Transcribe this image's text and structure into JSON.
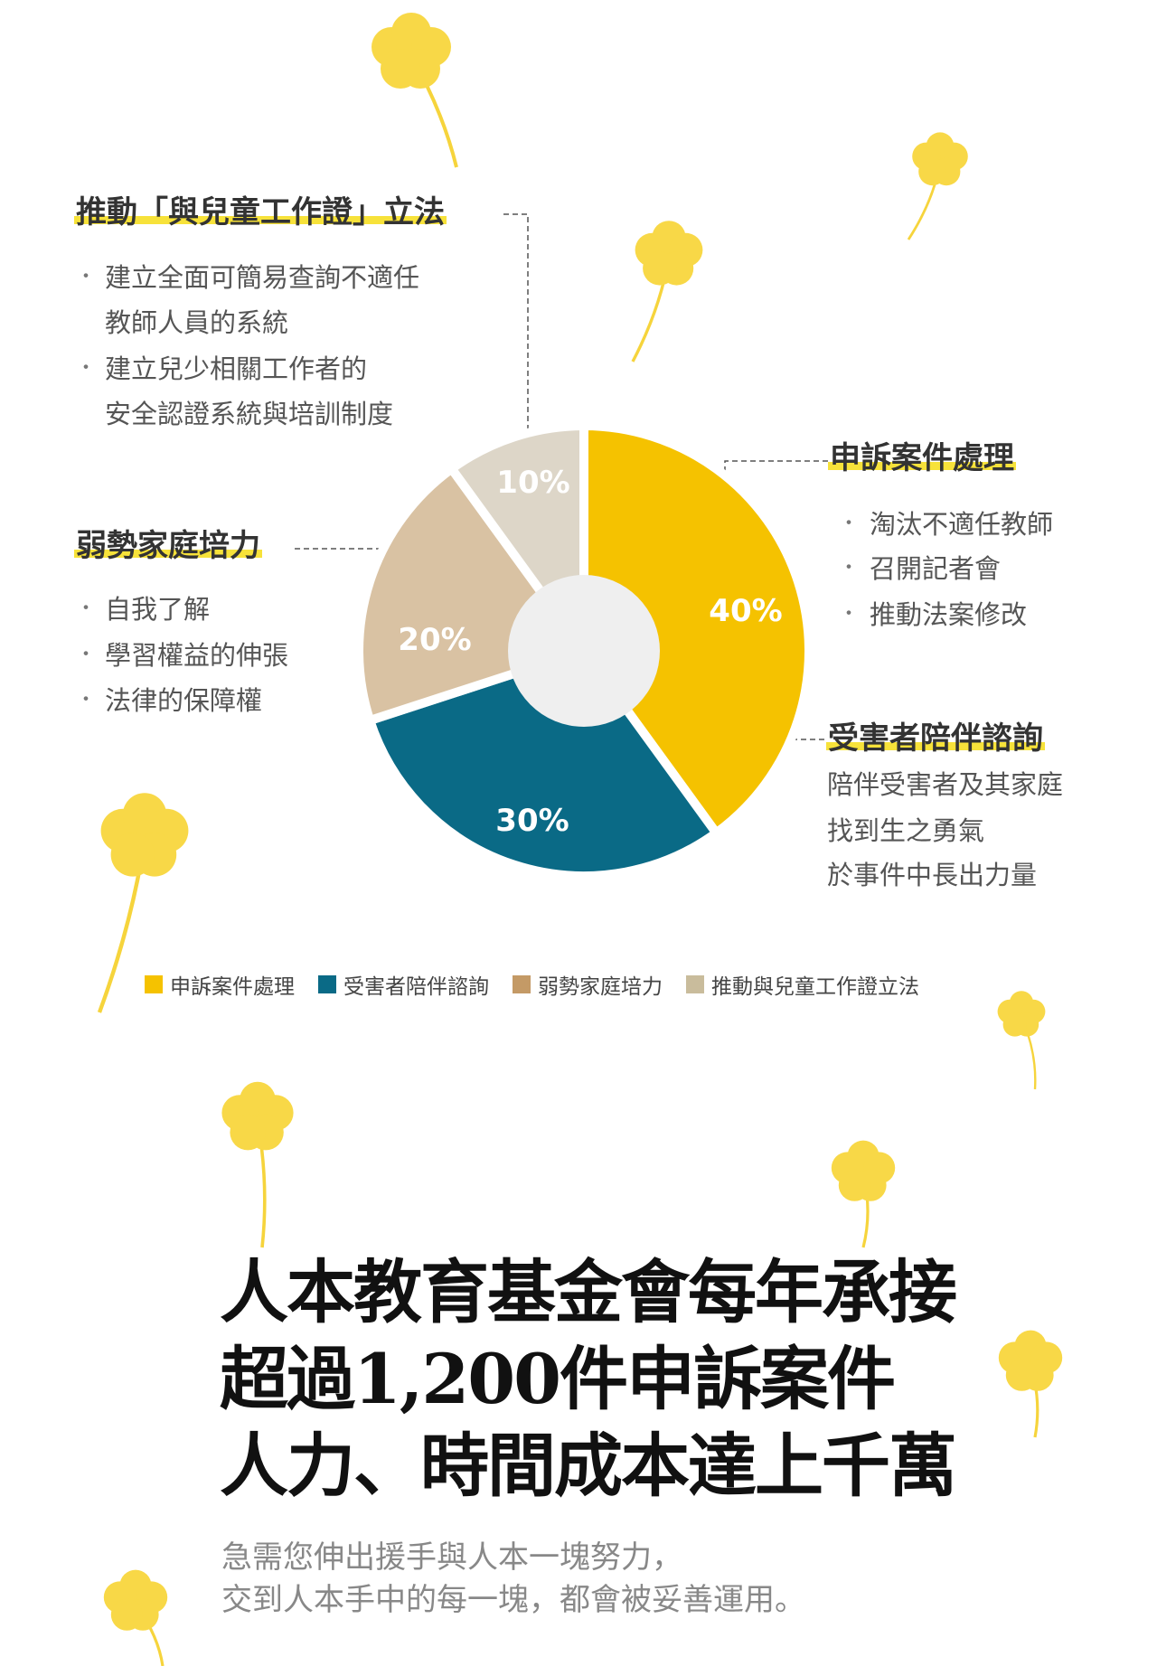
{
  "chart_data": {
    "type": "pie",
    "donut": true,
    "categories": [
      "申訴案件處理",
      "受害者陪伴諮詢",
      "弱勢家庭培力",
      "推動與兒童工作證立法"
    ],
    "values": [
      40,
      30,
      20,
      10
    ],
    "labels": [
      "40%",
      "30%",
      "20%",
      "10%"
    ],
    "colors": [
      "#F5C200",
      "#0A6A86",
      "#D9C2A3",
      "#DDD6C8"
    ],
    "legend_colors": [
      "#F5C200",
      "#0A6A86",
      "#C49A66",
      "#C9BC9C"
    ],
    "legend": "bottom"
  },
  "callouts": {
    "law": {
      "title": "推動「與兒童工作證」立法",
      "items": [
        "建立全面可簡易查詢不適任",
        "教師人員的系統",
        "建立兒少相關工作者的",
        "安全認證系統與培訓制度"
      ]
    },
    "family": {
      "title": "弱勢家庭培力",
      "items": [
        "自我了解",
        "學習權益的伸張",
        "法律的保障權"
      ]
    },
    "complaint": {
      "title": "申訴案件處理",
      "items": [
        "淘汰不適任教師",
        "召開記者會",
        "推動法案修改"
      ]
    },
    "victim": {
      "title": "受害者陪伴諮詢",
      "lines": [
        "陪伴受害者及其家庭",
        "找到生之勇氣",
        "於事件中長出力量"
      ]
    }
  },
  "bullet": "・",
  "headline": [
    "人本教育基金會每年承接",
    "超過1,200件申訴案件",
    "人力、時間成本達上千萬"
  ],
  "subtext": [
    "急需您伸出援手與人本一塊努力，",
    "交到人本手中的每一塊，都會被妥善運用。"
  ]
}
